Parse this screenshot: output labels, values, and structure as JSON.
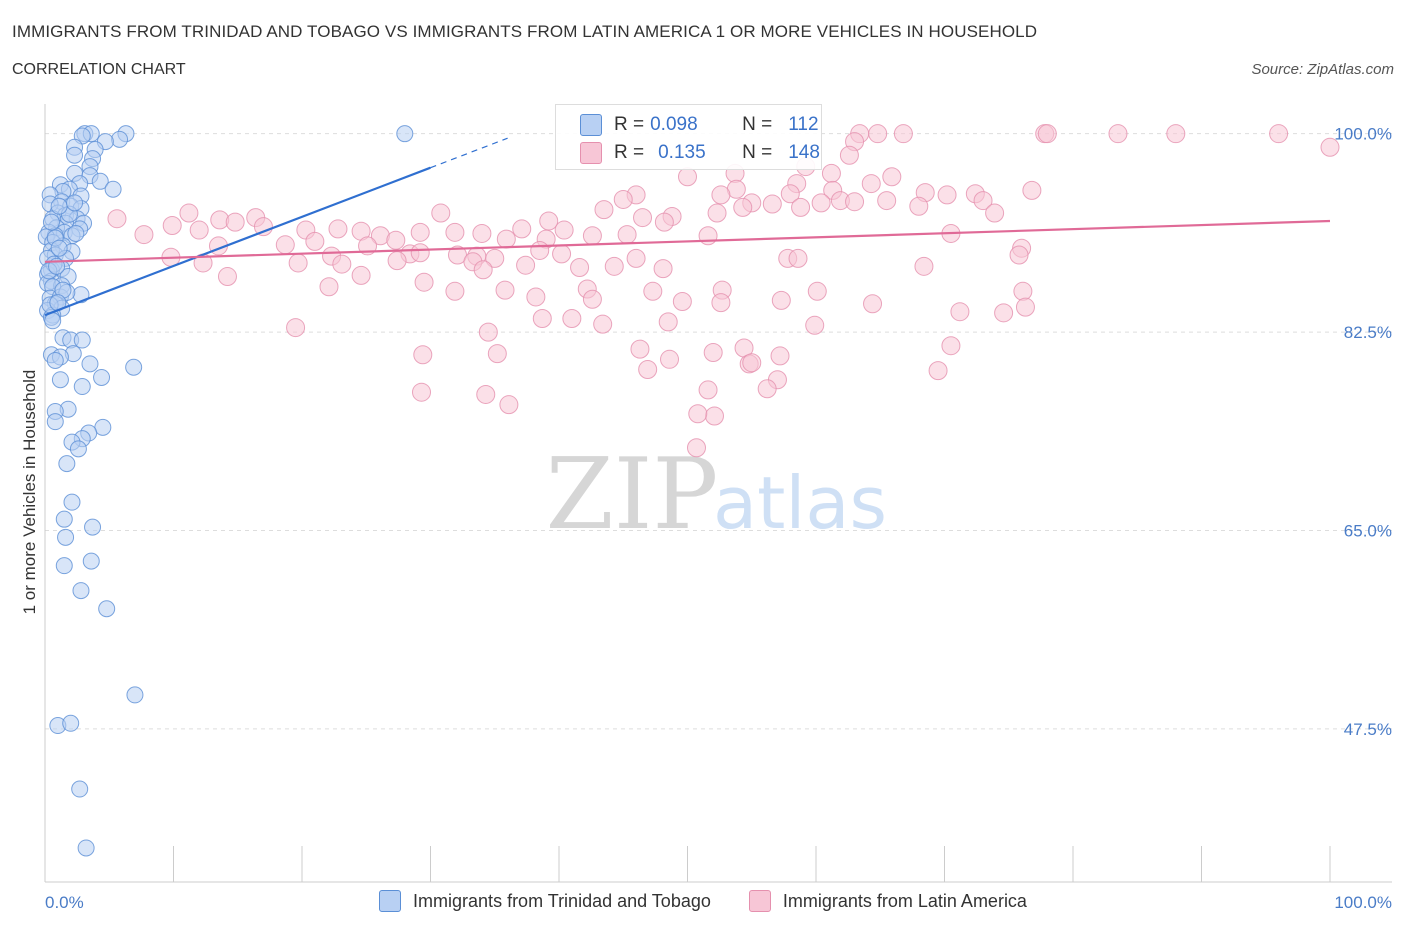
{
  "title": "IMMIGRANTS FROM TRINIDAD AND TOBAGO VS IMMIGRANTS FROM LATIN AMERICA 1 OR MORE VEHICLES IN HOUSEHOLD",
  "subtitle": "CORRELATION CHART",
  "source": "Source: ZipAtlas.com",
  "watermark": {
    "zip": "ZIP",
    "atlas": "atlas"
  },
  "colors": {
    "blue_fill": "#b8d0f3",
    "blue_stroke": "#5b8fd6",
    "blue_line": "#2f6fd0",
    "pink_fill": "#f7c6d6",
    "pink_stroke": "#e590ae",
    "pink_line": "#e06a97",
    "tick": "#4a7cc7",
    "grid": "#dddddd"
  },
  "stats": {
    "blue": {
      "r_label": "R =",
      "r_value": "0.098",
      "n_label": "N =",
      "n_value": "112"
    },
    "pink": {
      "r_label": "R =",
      "r_value": "0.135",
      "n_label": "N =",
      "n_value": "148"
    }
  },
  "legend": {
    "blue": "Immigrants from Trinidad and Tobago",
    "pink": "Immigrants from Latin America"
  },
  "chart_data": {
    "type": "scatter",
    "xlabel": "",
    "ylabel": "1 or more Vehicles in Household",
    "xlim": [
      0,
      100
    ],
    "ylim": [
      34,
      103.5
    ],
    "x_tick_labels": {
      "left": "0.0%",
      "right": "100.0%"
    },
    "y_ticks": [
      {
        "value": 100.0,
        "label": "100.0%"
      },
      {
        "value": 82.5,
        "label": "82.5%"
      },
      {
        "value": 65.0,
        "label": "65.0%"
      },
      {
        "value": 47.5,
        "label": "47.5%"
      }
    ],
    "grid": true,
    "legend_position": "bottom",
    "series": [
      {
        "name": "Immigrants from Trinidad and Tobago",
        "color": "blue",
        "trend": {
          "x0": 0.0,
          "y0": 84.0,
          "x1": 30.0,
          "y1": 97.0,
          "dash_to_x": 36.0
        },
        "points": [
          [
            3.1,
            100
          ],
          [
            3.6,
            100
          ],
          [
            6.3,
            100
          ],
          [
            2.9,
            99.8
          ],
          [
            5.8,
            99.5
          ],
          [
            4.7,
            99.3
          ],
          [
            2.3,
            98.8
          ],
          [
            3.9,
            98.6
          ],
          [
            2.3,
            98.1
          ],
          [
            3.7,
            97.8
          ],
          [
            3.5,
            97.1
          ],
          [
            2.3,
            96.5
          ],
          [
            3.5,
            96.3
          ],
          [
            4.3,
            95.8
          ],
          [
            2.7,
            95.6
          ],
          [
            1.2,
            95.5
          ],
          [
            1.9,
            95.1
          ],
          [
            1.4,
            94.9
          ],
          [
            5.3,
            95.1
          ],
          [
            0.4,
            94.6
          ],
          [
            2.8,
            94.5
          ],
          [
            1.3,
            94.0
          ],
          [
            0.4,
            93.8
          ],
          [
            2.0,
            93.6
          ],
          [
            2.8,
            93.4
          ],
          [
            1.0,
            93.0
          ],
          [
            1.6,
            92.8
          ],
          [
            2.5,
            92.5
          ],
          [
            1.6,
            92.1
          ],
          [
            0.6,
            92.5
          ],
          [
            3.0,
            92.1
          ],
          [
            0.9,
            91.7
          ],
          [
            2.7,
            91.6
          ],
          [
            0.3,
            91.3
          ],
          [
            1.5,
            91.3
          ],
          [
            0.8,
            91.0
          ],
          [
            2.1,
            91.0
          ],
          [
            0.1,
            90.9
          ],
          [
            0.6,
            90.4
          ],
          [
            1.4,
            90.1
          ],
          [
            0.5,
            89.7
          ],
          [
            2.1,
            89.6
          ],
          [
            0.8,
            89.3
          ],
          [
            1.6,
            89.0
          ],
          [
            0.2,
            89.0
          ],
          [
            1.3,
            88.1
          ],
          [
            0.5,
            88.0
          ],
          [
            0.2,
            87.6
          ],
          [
            1.8,
            87.4
          ],
          [
            0.5,
            87.0
          ],
          [
            0.2,
            86.8
          ],
          [
            1.3,
            86.6
          ],
          [
            0.6,
            86.5
          ],
          [
            2.8,
            85.8
          ],
          [
            0.4,
            85.5
          ],
          [
            1.2,
            85.6
          ],
          [
            0.8,
            85.0
          ],
          [
            1.3,
            84.6
          ],
          [
            0.2,
            84.4
          ],
          [
            0.6,
            84.0
          ],
          [
            0.5,
            83.8
          ],
          [
            1.4,
            82.0
          ],
          [
            2.0,
            81.8
          ],
          [
            2.9,
            81.8
          ],
          [
            2.2,
            80.6
          ],
          [
            0.5,
            80.5
          ],
          [
            1.2,
            80.3
          ],
          [
            0.8,
            80.0
          ],
          [
            3.5,
            79.7
          ],
          [
            6.9,
            79.4
          ],
          [
            4.4,
            78.5
          ],
          [
            1.2,
            78.3
          ],
          [
            2.9,
            77.7
          ],
          [
            1.8,
            75.7
          ],
          [
            0.8,
            75.5
          ],
          [
            0.8,
            74.6
          ],
          [
            4.5,
            74.1
          ],
          [
            3.4,
            73.6
          ],
          [
            2.9,
            73.1
          ],
          [
            2.1,
            72.8
          ],
          [
            2.6,
            72.2
          ],
          [
            1.7,
            70.9
          ],
          [
            2.1,
            67.5
          ],
          [
            1.5,
            66.0
          ],
          [
            3.7,
            65.3
          ],
          [
            1.6,
            64.4
          ],
          [
            3.6,
            62.3
          ],
          [
            1.5,
            61.9
          ],
          [
            2.8,
            59.7
          ],
          [
            4.8,
            58.1
          ],
          [
            7.0,
            50.5
          ],
          [
            1.0,
            47.8
          ],
          [
            2.0,
            48.0
          ],
          [
            2.7,
            42.2
          ],
          [
            3.2,
            37.0
          ],
          [
            28.0,
            100
          ],
          [
            0.8,
            90.8
          ],
          [
            1.1,
            89.9
          ],
          [
            0.7,
            88.5
          ],
          [
            0.3,
            87.9
          ],
          [
            1.7,
            86.0
          ],
          [
            0.4,
            84.9
          ],
          [
            1.9,
            92.9
          ],
          [
            2.4,
            91.2
          ],
          [
            1.1,
            93.6
          ],
          [
            0.5,
            92.2
          ],
          [
            0.9,
            88.3
          ],
          [
            2.3,
            93.9
          ],
          [
            1.4,
            86.2
          ],
          [
            0.6,
            83.5
          ],
          [
            1.0,
            85.1
          ]
        ]
      },
      {
        "name": "Immigrants from Latin America",
        "color": "pink",
        "trend": {
          "x0": 0.0,
          "y0": 88.7,
          "x1": 100.0,
          "y1": 92.3
        },
        "points": [
          [
            63.4,
            100
          ],
          [
            64.8,
            100
          ],
          [
            66.8,
            100
          ],
          [
            77.8,
            100
          ],
          [
            78.0,
            100
          ],
          [
            83.5,
            100
          ],
          [
            88.0,
            100
          ],
          [
            96.0,
            100
          ],
          [
            63.0,
            99.3
          ],
          [
            100,
            98.8
          ],
          [
            62.6,
            98.1
          ],
          [
            59.2,
            97.1
          ],
          [
            61.2,
            96.5
          ],
          [
            50.0,
            96.2
          ],
          [
            53.7,
            96.5
          ],
          [
            65.9,
            96.2
          ],
          [
            58.5,
            95.6
          ],
          [
            64.3,
            95.6
          ],
          [
            53.8,
            95.1
          ],
          [
            61.3,
            95.0
          ],
          [
            76.8,
            95.0
          ],
          [
            46.0,
            94.6
          ],
          [
            52.6,
            94.6
          ],
          [
            58.0,
            94.7
          ],
          [
            68.5,
            94.8
          ],
          [
            70.2,
            94.6
          ],
          [
            72.4,
            94.7
          ],
          [
            45.0,
            94.2
          ],
          [
            73.0,
            94.1
          ],
          [
            61.9,
            94.1
          ],
          [
            55.0,
            93.9
          ],
          [
            56.6,
            93.8
          ],
          [
            60.4,
            93.9
          ],
          [
            63.0,
            94.0
          ],
          [
            65.5,
            94.1
          ],
          [
            54.3,
            93.5
          ],
          [
            58.8,
            93.5
          ],
          [
            68.0,
            93.6
          ],
          [
            52.3,
            93.0
          ],
          [
            73.9,
            93.0
          ],
          [
            43.5,
            93.3
          ],
          [
            30.8,
            93.0
          ],
          [
            48.8,
            92.7
          ],
          [
            46.5,
            92.6
          ],
          [
            11.2,
            93.0
          ],
          [
            39.2,
            92.3
          ],
          [
            48.2,
            92.2
          ],
          [
            16.4,
            92.6
          ],
          [
            5.6,
            92.5
          ],
          [
            13.6,
            92.4
          ],
          [
            14.8,
            92.2
          ],
          [
            9.9,
            91.9
          ],
          [
            12.0,
            91.5
          ],
          [
            17.0,
            91.8
          ],
          [
            20.3,
            91.5
          ],
          [
            22.8,
            91.6
          ],
          [
            24.6,
            91.4
          ],
          [
            29.2,
            91.3
          ],
          [
            31.9,
            91.3
          ],
          [
            34.0,
            91.2
          ],
          [
            37.1,
            91.6
          ],
          [
            40.4,
            91.5
          ],
          [
            42.6,
            91.0
          ],
          [
            45.3,
            91.1
          ],
          [
            51.6,
            91.0
          ],
          [
            70.5,
            91.2
          ],
          [
            26.1,
            91.0
          ],
          [
            21.0,
            90.5
          ],
          [
            27.3,
            90.6
          ],
          [
            7.7,
            91.1
          ],
          [
            35.9,
            90.7
          ],
          [
            39.0,
            90.7
          ],
          [
            13.5,
            90.1
          ],
          [
            18.7,
            90.2
          ],
          [
            25.1,
            90.1
          ],
          [
            38.5,
            89.7
          ],
          [
            76.0,
            89.9
          ],
          [
            28.4,
            89.4
          ],
          [
            32.1,
            89.3
          ],
          [
            75.8,
            89.3
          ],
          [
            9.8,
            89.1
          ],
          [
            22.3,
            89.2
          ],
          [
            33.6,
            89.2
          ],
          [
            35.0,
            89.0
          ],
          [
            40.2,
            89.4
          ],
          [
            46.0,
            89.0
          ],
          [
            57.8,
            89.0
          ],
          [
            58.6,
            89.0
          ],
          [
            12.3,
            88.6
          ],
          [
            19.7,
            88.6
          ],
          [
            27.4,
            88.8
          ],
          [
            23.1,
            88.5
          ],
          [
            29.2,
            89.5
          ],
          [
            33.3,
            88.7
          ],
          [
            37.4,
            88.4
          ],
          [
            41.6,
            88.2
          ],
          [
            44.3,
            88.3
          ],
          [
            34.1,
            88.0
          ],
          [
            48.1,
            88.1
          ],
          [
            68.4,
            88.3
          ],
          [
            14.2,
            87.4
          ],
          [
            24.6,
            87.5
          ],
          [
            29.5,
            86.9
          ],
          [
            22.1,
            86.5
          ],
          [
            31.9,
            86.1
          ],
          [
            35.8,
            86.2
          ],
          [
            42.2,
            86.3
          ],
          [
            47.3,
            86.1
          ],
          [
            52.7,
            86.2
          ],
          [
            60.1,
            86.1
          ],
          [
            76.1,
            86.1
          ],
          [
            38.2,
            85.6
          ],
          [
            42.6,
            85.4
          ],
          [
            49.6,
            85.2
          ],
          [
            52.6,
            85.1
          ],
          [
            57.3,
            85.3
          ],
          [
            64.4,
            85.0
          ],
          [
            71.2,
            84.3
          ],
          [
            74.6,
            84.2
          ],
          [
            76.3,
            84.7
          ],
          [
            38.7,
            83.7
          ],
          [
            41.0,
            83.7
          ],
          [
            43.4,
            83.2
          ],
          [
            48.5,
            83.4
          ],
          [
            59.9,
            83.1
          ],
          [
            19.5,
            82.9
          ],
          [
            34.5,
            82.5
          ],
          [
            46.3,
            81.0
          ],
          [
            70.5,
            81.3
          ],
          [
            29.4,
            80.5
          ],
          [
            35.2,
            80.6
          ],
          [
            52.0,
            80.7
          ],
          [
            54.4,
            81.1
          ],
          [
            48.6,
            80.1
          ],
          [
            57.2,
            80.4
          ],
          [
            54.8,
            79.7
          ],
          [
            55.0,
            79.8
          ],
          [
            46.9,
            79.2
          ],
          [
            57.0,
            78.3
          ],
          [
            69.5,
            79.1
          ],
          [
            56.2,
            77.5
          ],
          [
            29.3,
            77.2
          ],
          [
            34.3,
            77.0
          ],
          [
            51.6,
            77.4
          ],
          [
            36.1,
            76.1
          ],
          [
            52.1,
            75.1
          ],
          [
            50.8,
            75.3
          ],
          [
            50.7,
            72.3
          ]
        ]
      }
    ]
  }
}
